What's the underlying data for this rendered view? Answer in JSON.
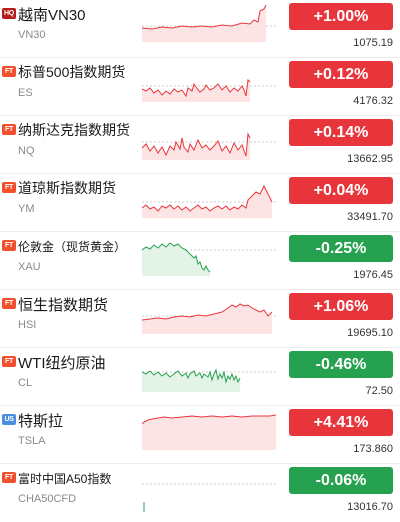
{
  "colors": {
    "up": "#e8353b",
    "down": "#26a150",
    "hq": "#b71c1c",
    "ft": "#f0502c",
    "us": "#4a8fe0"
  },
  "rows": [
    {
      "badge": "HQ",
      "name": "越南VN30",
      "code": "VN30",
      "change": "+1.00%",
      "price": "1075.19",
      "dir": "up"
    },
    {
      "badge": "FT",
      "name": "标普500指数期货",
      "code": "ES",
      "change": "+0.12%",
      "price": "4176.32",
      "dir": "up"
    },
    {
      "badge": "FT",
      "name": "纳斯达克指数期货",
      "code": "NQ",
      "change": "+0.14%",
      "price": "13662.95",
      "dir": "up"
    },
    {
      "badge": "FT",
      "name": "道琼斯指数期货",
      "code": "YM",
      "change": "+0.04%",
      "price": "33491.70",
      "dir": "up"
    },
    {
      "badge": "FT",
      "name": "伦敦金（现货黄金）",
      "code": "XAU",
      "change": "-0.25%",
      "price": "1976.45",
      "dir": "down"
    },
    {
      "badge": "FT",
      "name": "恒生指数期货",
      "code": "HSI",
      "change": "+1.06%",
      "price": "19695.10",
      "dir": "up"
    },
    {
      "badge": "FT",
      "name": "WTI纽约原油",
      "code": "CL",
      "change": "-0.46%",
      "price": "72.50",
      "dir": "down"
    },
    {
      "badge": "US",
      "name": "特斯拉",
      "code": "TSLA",
      "change": "+4.41%",
      "price": "173.860",
      "dir": "up"
    },
    {
      "badge": "FT",
      "name": "富时中国A50指数",
      "code": "CHA50CFD",
      "change": "-0.06%",
      "price": "13016.70",
      "dir": "down"
    }
  ]
}
